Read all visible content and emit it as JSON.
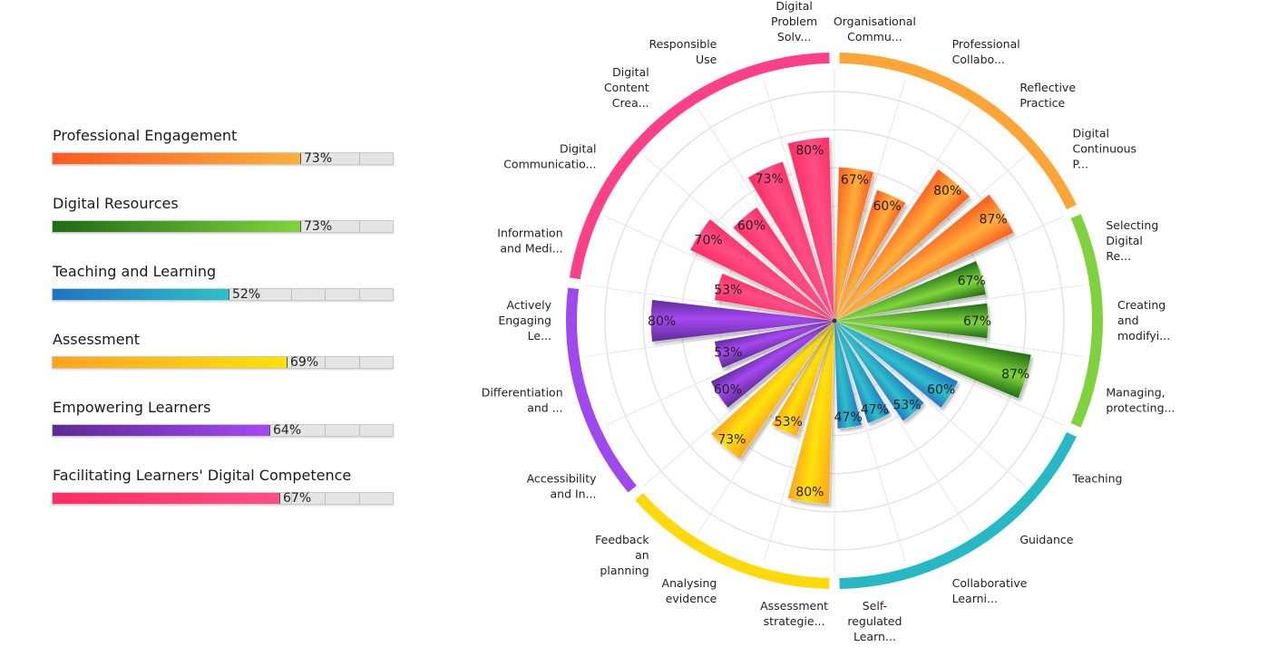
{
  "chart_data": {
    "type": "polar-bar",
    "categories": [
      {
        "name": "Professional Engagement",
        "percent": 73,
        "colors": [
          "#ff5a1f",
          "#ffb03a"
        ],
        "ring_color": "#ffa437",
        "items": [
          {
            "label": [
              "Organisational",
              "Commu..."
            ],
            "value": 67
          },
          {
            "label": [
              "Professional",
              "Collabo..."
            ],
            "value": 60
          },
          {
            "label": [
              "Reflective",
              "Practice"
            ],
            "value": 80
          },
          {
            "label": [
              "Digital",
              "Continuous",
              "P..."
            ],
            "value": 87
          }
        ]
      },
      {
        "name": "Digital Resources",
        "percent": 73,
        "colors": [
          "#1e6b14",
          "#7fd63a"
        ],
        "ring_color": "#7ed33c",
        "items": [
          {
            "label": [
              "Selecting",
              "Digital",
              "Re..."
            ],
            "value": 67
          },
          {
            "label": [
              "Creating",
              "and",
              "modifyi..."
            ],
            "value": 67
          },
          {
            "label": [
              "Managing,",
              "protecting..."
            ],
            "value": 87
          }
        ]
      },
      {
        "name": "Teaching and Learning",
        "percent": 52,
        "colors": [
          "#1e74c4",
          "#2fc0c9"
        ],
        "ring_color": "#27b8c6",
        "items": [
          {
            "label": [
              "Teaching"
            ],
            "value": 60
          },
          {
            "label": [
              "Guidance"
            ],
            "value": 53
          },
          {
            "label": [
              "Collaborative",
              "Learni..."
            ],
            "value": 47
          },
          {
            "label": [
              "Self-",
              "regulated",
              "Learn..."
            ],
            "value": 47
          }
        ]
      },
      {
        "name": "Assessment",
        "percent": 69,
        "colors": [
          "#ffa31f",
          "#ffe20a"
        ],
        "ring_color": "#ffd90a",
        "items": [
          {
            "label": [
              "Assessment",
              "strategie..."
            ],
            "value": 80
          },
          {
            "label": [
              "Analysing",
              "evidence"
            ],
            "value": 53
          },
          {
            "label": [
              "Feedback",
              "an",
              "planning"
            ],
            "value": 73
          }
        ]
      },
      {
        "name": "Empowering Learners",
        "percent": 64,
        "colors": [
          "#5d2a96",
          "#a648f2"
        ],
        "ring_color": "#a048f0",
        "items": [
          {
            "label": [
              "Accessibility",
              "and In..."
            ],
            "value": 60
          },
          {
            "label": [
              "Differentiation",
              "and ..."
            ],
            "value": 53
          },
          {
            "label": [
              "Actively",
              "Engaging",
              "Le..."
            ],
            "value": 80
          }
        ]
      },
      {
        "name": "Facilitating Learners' Digital Competence",
        "percent": 67,
        "colors": [
          "#ff2d62",
          "#ff4f86"
        ],
        "ring_color": "#ff3f88",
        "items": [
          {
            "label": [
              "Information",
              "and Medi..."
            ],
            "value": 53
          },
          {
            "label": [
              "Digital",
              "Communicatio..."
            ],
            "value": 70
          },
          {
            "label": [
              "Digital",
              "Content",
              "Crea..."
            ],
            "value": 60
          },
          {
            "label": [
              "Responsible",
              "Use"
            ],
            "value": 73
          },
          {
            "label": [
              "Digital",
              "Problem",
              "Solv..."
            ],
            "value": 80
          }
        ]
      }
    ],
    "value_suffix": "%",
    "radial_range": [
      0,
      100
    ],
    "grid": true
  }
}
